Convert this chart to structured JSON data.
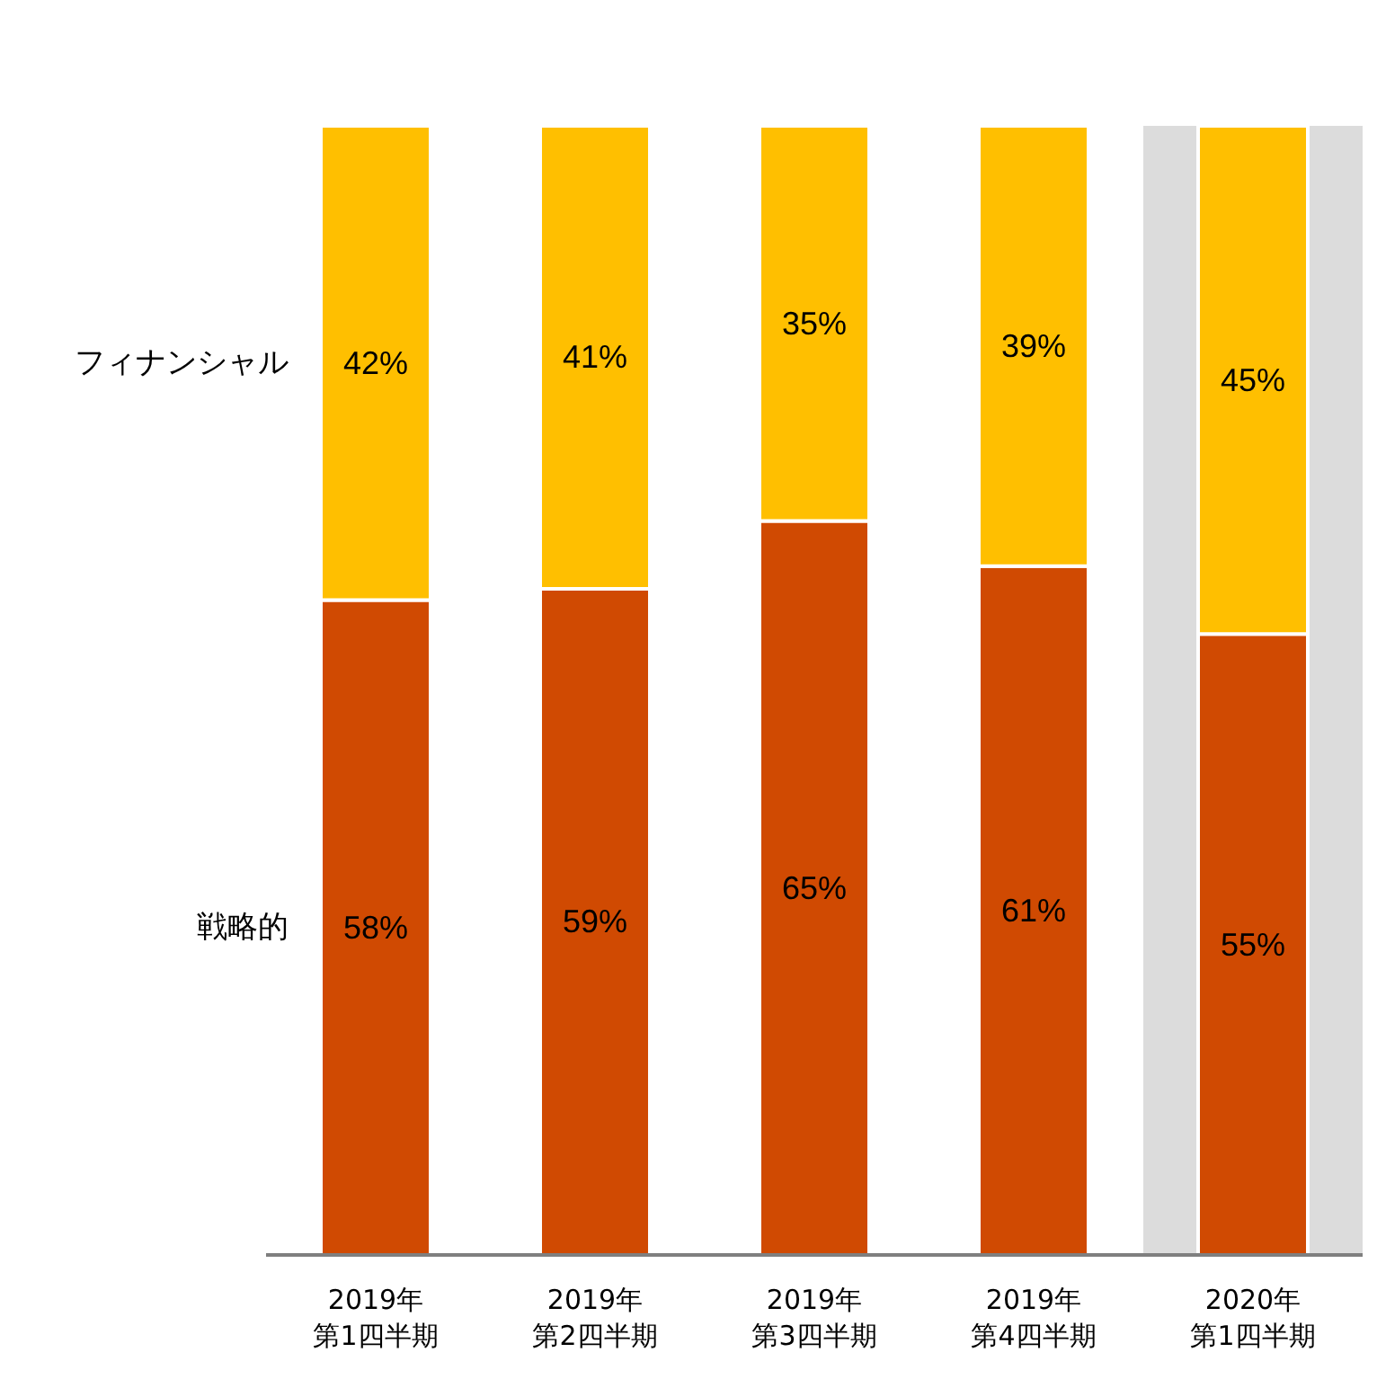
{
  "chart_data": {
    "type": "bar",
    "stacked": true,
    "categories": [
      "2019年第1四半期",
      "2019年第2四半期",
      "2019年第3四半期",
      "2019年第4四半期",
      "2020年第1四半期"
    ],
    "series": [
      {
        "name": "戦略的",
        "color": "#d04a02",
        "values": [
          58,
          59,
          65,
          61,
          55
        ],
        "value_labels": [
          "58%",
          "59%",
          "65%",
          "61%",
          "55%"
        ]
      },
      {
        "name": "フィナンシャル",
        "color": "#ffbf00",
        "values": [
          42,
          41,
          35,
          39,
          45
        ],
        "value_labels": [
          "42%",
          "41%",
          "35%",
          "39%",
          "45%"
        ]
      }
    ],
    "bands": [
      {
        "axis": "x",
        "from": "2020年第1四半期",
        "to": "2020年第1四半期",
        "color": "#dcdcdc"
      }
    ]
  }
}
